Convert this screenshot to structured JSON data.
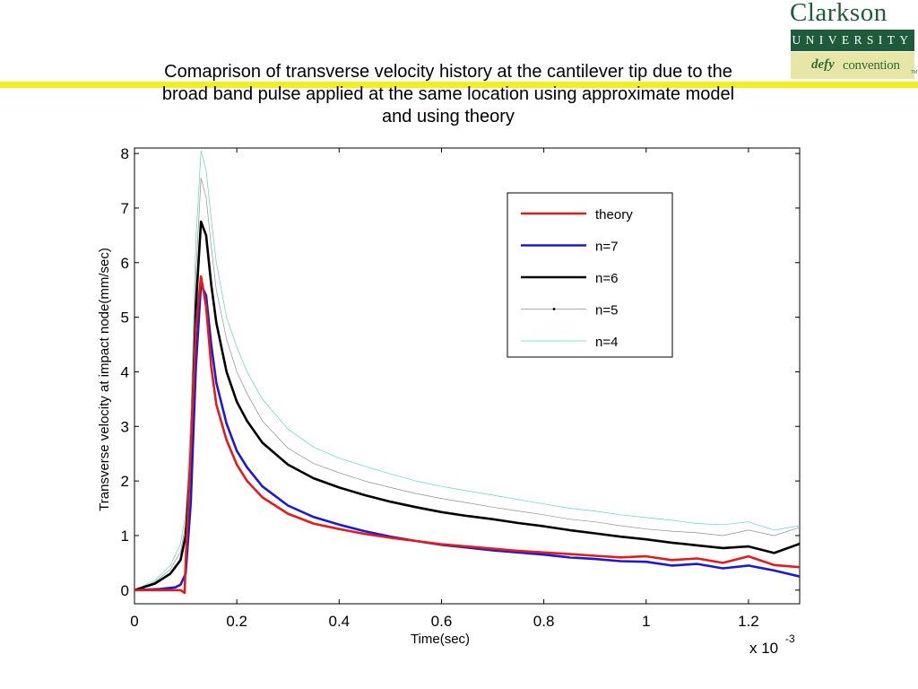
{
  "title_lines": [
    "Comaprison of transverse velocity history at the cantilever tip due to the",
    "broad band pulse applied at the same location using approximate model",
    "and using theory"
  ],
  "logo": {
    "word": "Clarkson",
    "band": "UNIVERSITY",
    "slogan_a": "defy",
    "slogan_b": "convention",
    "tm": "TM"
  },
  "colors": {
    "accent_bar": "#f5ee1e",
    "logo_green": "#1d5b3a",
    "logo_slogan_bg": "#e8e6a6"
  },
  "chart_data": {
    "type": "line",
    "xlabel": "Time(sec)",
    "ylabel": "Transverse velocity at impact node(mm/sec)",
    "x_multiplier_text": "x 10",
    "x_multiplier_exp": "-3",
    "xlim": [
      0,
      1.3
    ],
    "ylim": [
      -0.25,
      8.1
    ],
    "xticks": [
      0,
      0.2,
      0.4,
      0.6,
      0.8,
      1,
      1.2
    ],
    "xtick_labels": [
      "0",
      "0.2",
      "0.4",
      "0.6",
      "0.8",
      "1",
      "1.2"
    ],
    "yticks": [
      0,
      1,
      2,
      3,
      4,
      5,
      6,
      7,
      8
    ],
    "ytick_labels": [
      "0",
      "1",
      "2",
      "3",
      "4",
      "5",
      "6",
      "7",
      "8"
    ],
    "grid": false,
    "legend_position": "top-right",
    "series": [
      {
        "name": "theory",
        "color": "#e21b1b",
        "width": 2.6,
        "x": [
          0,
          0.05,
          0.09,
          0.098,
          0.1,
          0.11,
          0.12,
          0.13,
          0.14,
          0.15,
          0.16,
          0.18,
          0.2,
          0.22,
          0.25,
          0.3,
          0.35,
          0.4,
          0.45,
          0.5,
          0.55,
          0.6,
          0.65,
          0.7,
          0.75,
          0.8,
          0.85,
          0.9,
          0.95,
          1.0,
          1.05,
          1.1,
          1.15,
          1.2,
          1.25,
          1.3
        ],
        "y": [
          0,
          0,
          0,
          -0.05,
          0.5,
          2.6,
          4.8,
          5.75,
          5.2,
          4.1,
          3.4,
          2.75,
          2.3,
          2.0,
          1.7,
          1.4,
          1.22,
          1.12,
          1.03,
          0.96,
          0.9,
          0.84,
          0.8,
          0.76,
          0.72,
          0.69,
          0.66,
          0.63,
          0.6,
          0.62,
          0.55,
          0.58,
          0.5,
          0.62,
          0.46,
          0.42
        ]
      },
      {
        "name": "n=7",
        "color": "#1a1ad6",
        "width": 2.6,
        "x": [
          0,
          0.05,
          0.08,
          0.09,
          0.1,
          0.11,
          0.12,
          0.13,
          0.14,
          0.15,
          0.16,
          0.18,
          0.2,
          0.22,
          0.25,
          0.3,
          0.35,
          0.4,
          0.45,
          0.5,
          0.55,
          0.6,
          0.65,
          0.7,
          0.75,
          0.8,
          0.85,
          0.9,
          0.95,
          1.0,
          1.05,
          1.1,
          1.15,
          1.2,
          1.25,
          1.3
        ],
        "y": [
          0,
          0.02,
          0.05,
          0.1,
          0.3,
          1.6,
          4.1,
          5.6,
          5.4,
          4.5,
          3.8,
          3.05,
          2.55,
          2.25,
          1.9,
          1.55,
          1.34,
          1.2,
          1.08,
          0.98,
          0.9,
          0.83,
          0.78,
          0.73,
          0.69,
          0.65,
          0.6,
          0.57,
          0.53,
          0.52,
          0.45,
          0.48,
          0.4,
          0.45,
          0.36,
          0.25
        ]
      },
      {
        "name": "n=6",
        "color": "#000000",
        "width": 2.6,
        "x": [
          0,
          0.04,
          0.07,
          0.09,
          0.1,
          0.11,
          0.12,
          0.13,
          0.14,
          0.15,
          0.16,
          0.18,
          0.2,
          0.22,
          0.25,
          0.3,
          0.35,
          0.4,
          0.45,
          0.5,
          0.55,
          0.6,
          0.65,
          0.7,
          0.75,
          0.8,
          0.85,
          0.9,
          0.95,
          1.0,
          1.05,
          1.1,
          1.15,
          1.2,
          1.25,
          1.3
        ],
        "y": [
          0,
          0.12,
          0.3,
          0.55,
          1.0,
          2.4,
          5.2,
          6.75,
          6.5,
          5.6,
          4.9,
          4.0,
          3.45,
          3.1,
          2.7,
          2.3,
          2.05,
          1.88,
          1.74,
          1.62,
          1.52,
          1.43,
          1.36,
          1.3,
          1.23,
          1.17,
          1.1,
          1.04,
          0.98,
          0.93,
          0.87,
          0.82,
          0.77,
          0.8,
          0.68,
          0.85
        ]
      },
      {
        "name": "n=5",
        "color": "#909090",
        "width": 0.7,
        "x": [
          0,
          0.04,
          0.07,
          0.09,
          0.1,
          0.11,
          0.12,
          0.13,
          0.14,
          0.15,
          0.16,
          0.18,
          0.2,
          0.22,
          0.25,
          0.3,
          0.35,
          0.4,
          0.45,
          0.5,
          0.55,
          0.6,
          0.65,
          0.7,
          0.75,
          0.8,
          0.85,
          0.9,
          0.95,
          1.0,
          1.05,
          1.1,
          1.15,
          1.2,
          1.25,
          1.3
        ],
        "y": [
          0,
          0.15,
          0.38,
          0.7,
          1.2,
          2.8,
          5.8,
          7.55,
          7.2,
          6.3,
          5.5,
          4.6,
          4.0,
          3.6,
          3.1,
          2.6,
          2.32,
          2.15,
          2.0,
          1.88,
          1.77,
          1.68,
          1.6,
          1.52,
          1.45,
          1.38,
          1.3,
          1.25,
          1.18,
          1.12,
          1.08,
          1.05,
          1.0,
          1.1,
          1.0,
          1.15
        ]
      },
      {
        "name": "n=4",
        "color": "#5cd6b8",
        "width": 0.7,
        "x": [
          0,
          0.04,
          0.07,
          0.09,
          0.1,
          0.11,
          0.12,
          0.13,
          0.14,
          0.15,
          0.16,
          0.18,
          0.2,
          0.22,
          0.25,
          0.3,
          0.35,
          0.4,
          0.45,
          0.5,
          0.55,
          0.6,
          0.65,
          0.7,
          0.75,
          0.8,
          0.85,
          0.9,
          0.95,
          1.0,
          1.05,
          1.1,
          1.15,
          1.2,
          1.25,
          1.3
        ],
        "y": [
          0,
          0.18,
          0.45,
          0.85,
          1.4,
          3.2,
          6.4,
          8.05,
          7.7,
          6.8,
          6.0,
          5.0,
          4.45,
          4.0,
          3.5,
          2.95,
          2.62,
          2.42,
          2.27,
          2.13,
          2.0,
          1.9,
          1.82,
          1.74,
          1.66,
          1.58,
          1.5,
          1.45,
          1.38,
          1.33,
          1.28,
          1.22,
          1.2,
          1.25,
          1.1,
          1.18
        ]
      }
    ]
  }
}
